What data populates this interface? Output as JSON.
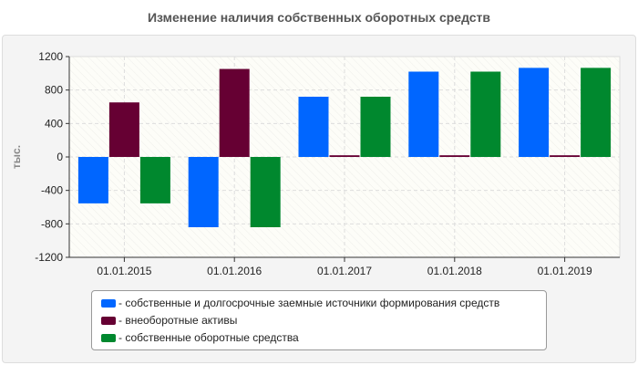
{
  "chart_data": {
    "type": "bar",
    "title": "Изменение наличия собственных оборотных средств",
    "ylabel": "тыс.",
    "xlabel": "",
    "ylim": [
      -1200,
      1200
    ],
    "yticks": [
      1200,
      800,
      400,
      0,
      -400,
      -800,
      -1200
    ],
    "grid": true,
    "legend_position": "bottom",
    "categories": [
      "01.01.2015",
      "01.01.2016",
      "01.01.2017",
      "01.01.2018",
      "01.01.2019"
    ],
    "series": [
      {
        "name": "- собственные и долгосрочные заемные источники формирования средств",
        "color": "#0066ff",
        "values": [
          -555,
          -840,
          720,
          1020,
          1065
        ]
      },
      {
        "name": "- внеоборотные активы",
        "color": "#660033",
        "values": [
          652,
          1052,
          20,
          20,
          20
        ]
      },
      {
        "name": "- собственные оборотные средства",
        "color": "#00882e",
        "values": [
          -555,
          -840,
          720,
          1020,
          1065
        ]
      }
    ]
  }
}
